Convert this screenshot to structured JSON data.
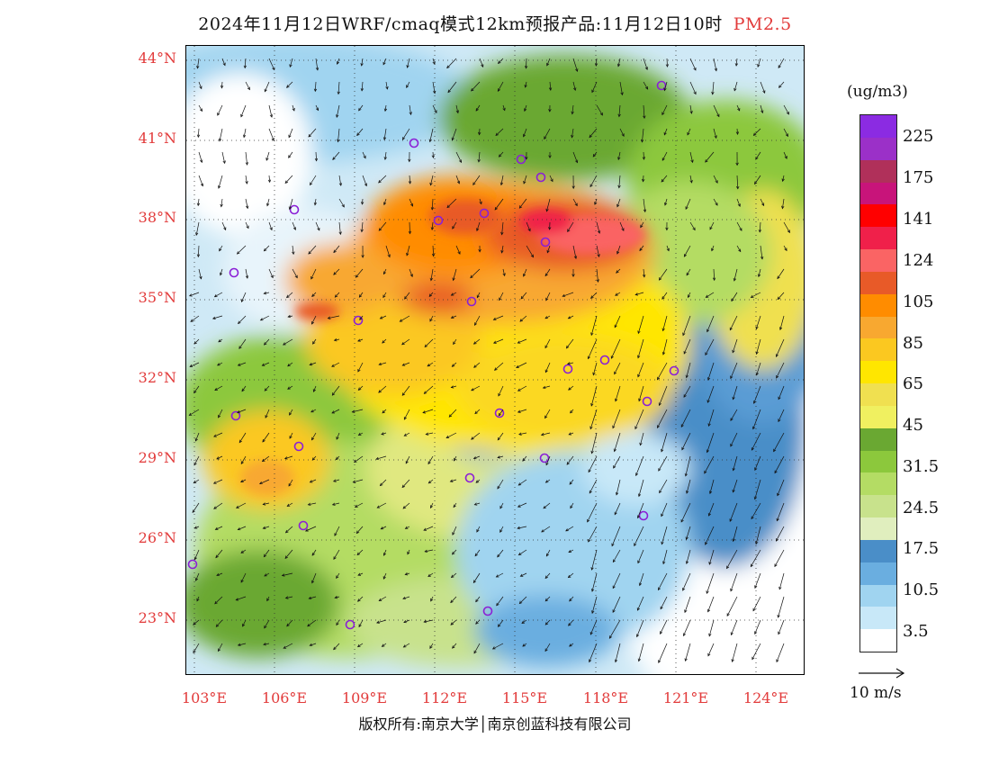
{
  "header": {
    "title": "2024年11月12日WRF/cmaq模式12km预报产品:11月12日10时",
    "pollutant": "PM2.5"
  },
  "map": {
    "lat_labels": [
      "44°N",
      "41°N",
      "38°N",
      "35°N",
      "32°N",
      "29°N",
      "26°N",
      "23°N"
    ],
    "lon_labels": [
      "103°E",
      "106°E",
      "109°E",
      "112°E",
      "115°E",
      "118°E",
      "121°E",
      "124°E"
    ],
    "label_color": "#e23b3b",
    "station_color": "#8b1fd6"
  },
  "legend": {
    "units": "(ug/m3)",
    "labels": [
      "225",
      "175",
      "141",
      "124",
      "105",
      "85",
      "65",
      "45",
      "31.5",
      "24.5",
      "17.5",
      "10.5",
      "3.5"
    ],
    "colors": [
      "#8b2be2",
      "#9b30c8",
      "#b0305a",
      "#c8147a",
      "#ff0000",
      "#f0204a",
      "#fa6464",
      "#e85a28",
      "#ff8c00",
      "#f8a830",
      "#fbc820",
      "#ffe600",
      "#f0e050",
      "#f0f060",
      "#6aa832",
      "#8cc83c",
      "#b4dc64",
      "#c8e28c",
      "#e0eebe",
      "#4a8ec8",
      "#6aaee0",
      "#a0d4f0",
      "#c8e8f8",
      "#ffffff"
    ]
  },
  "wind": {
    "reference_label": "10 m/s"
  },
  "footer": {
    "copyright": "版权所有:南京大学│南京创蓝科技有限公司"
  }
}
